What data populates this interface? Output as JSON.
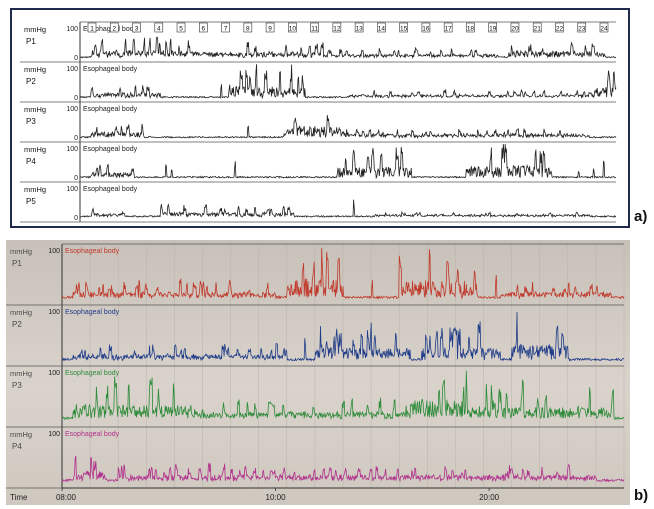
{
  "panel_labels": {
    "a": "a)",
    "b": "b)"
  },
  "chart_data": [
    {
      "type": "line",
      "panel": "a)",
      "ylim": [
        0,
        100
      ],
      "y_unit": "mmHg",
      "ytick_top": "100",
      "ytick_bottom": "0",
      "region_label": "Esophageal body",
      "grid": false,
      "event_markers": [
        "1",
        "2",
        "3",
        "4",
        "5",
        "6",
        "7",
        "8",
        "9",
        "10",
        "11",
        "12",
        "13",
        "14",
        "15",
        "16",
        "17",
        "18",
        "19",
        "20",
        "21",
        "22",
        "23",
        "24"
      ],
      "series": [
        {
          "name": "P1",
          "color": "#222222",
          "baseline": 8,
          "activity": [
            [
              0.02,
              0.18,
              55
            ],
            [
              0.12,
              0.45,
              40
            ],
            [
              0.45,
              0.78,
              22
            ],
            [
              0.8,
              0.98,
              45
            ]
          ]
        },
        {
          "name": "P2",
          "color": "#222222",
          "baseline": 8,
          "activity": [
            [
              0.02,
              0.15,
              35
            ],
            [
              0.28,
              0.42,
              85
            ],
            [
              0.5,
              0.96,
              18
            ],
            [
              0.96,
              1.0,
              80
            ]
          ]
        },
        {
          "name": "P3",
          "color": "#222222",
          "baseline": 8,
          "activity": [
            [
              0.02,
              0.12,
              40
            ],
            [
              0.38,
              0.5,
              85
            ],
            [
              0.5,
              0.95,
              25
            ]
          ]
        },
        {
          "name": "P4",
          "color": "#222222",
          "baseline": 8,
          "activity": [
            [
              0.02,
              0.1,
              35
            ],
            [
              0.48,
              0.62,
              80
            ],
            [
              0.72,
              0.88,
              90
            ]
          ]
        },
        {
          "name": "P5",
          "color": "#222222",
          "baseline": 10,
          "activity": [
            [
              0.02,
              0.08,
              20
            ],
            [
              0.15,
              0.4,
              30
            ],
            [
              0.55,
              0.95,
              12
            ]
          ]
        }
      ]
    },
    {
      "type": "line",
      "panel": "b)",
      "ylim": [
        0,
        100
      ],
      "y_unit": "mmHg",
      "ytick_top": "100",
      "region_label": "Esophageal body",
      "grid": true,
      "x_axis_label": "Time",
      "x_ticks": [
        "08:00",
        "10:00",
        "20:00"
      ],
      "series": [
        {
          "name": "P1",
          "color": "#c0392b",
          "baseline": 10,
          "activity": [
            [
              0.02,
              0.38,
              25
            ],
            [
              0.4,
              0.5,
              90
            ],
            [
              0.6,
              0.74,
              80
            ],
            [
              0.78,
              0.98,
              25
            ]
          ]
        },
        {
          "name": "P2",
          "color": "#1f3c88",
          "baseline": 8,
          "activity": [
            [
              0.02,
              0.4,
              25
            ],
            [
              0.45,
              0.62,
              55
            ],
            [
              0.64,
              0.78,
              60
            ],
            [
              0.8,
              0.9,
              75
            ]
          ]
        },
        {
          "name": "P3",
          "color": "#2e8b3a",
          "baseline": 12,
          "activity": [
            [
              0.02,
              0.24,
              70
            ],
            [
              0.24,
              0.62,
              30
            ],
            [
              0.62,
              0.72,
              95
            ],
            [
              0.72,
              0.98,
              55
            ]
          ]
        },
        {
          "name": "P4",
          "color": "#b0308c",
          "baseline": 10,
          "activity": [
            [
              0.02,
              0.08,
              45
            ],
            [
              0.1,
              0.95,
              25
            ]
          ]
        }
      ]
    }
  ]
}
